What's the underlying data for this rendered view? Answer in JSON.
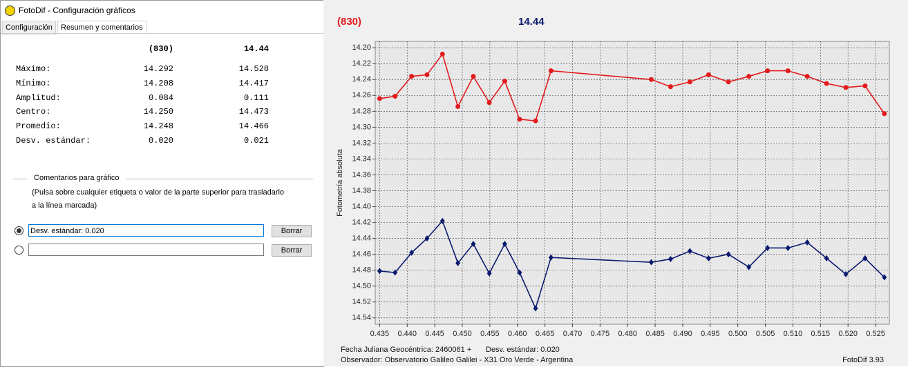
{
  "dialog": {
    "title": "FotoDif - Configuración gráficos",
    "tabs": [
      "Configuración",
      "Resumen y comentarios"
    ],
    "summary": {
      "header": [
        "(830)",
        "14.44"
      ],
      "rows": [
        [
          "Máximo:",
          "14.292",
          "14.528"
        ],
        [
          "Mínimo:",
          "14.208",
          "14.417"
        ],
        [
          "Amplitud:",
          "0.084",
          "0.111"
        ],
        [
          "Centro:",
          "14.250",
          "14.473"
        ],
        [
          "Promedio:",
          "14.248",
          "14.466"
        ],
        [
          "Desv. estándar:",
          "0.020",
          "0.021"
        ]
      ]
    },
    "comments": {
      "legend": "Comentarios para gráfico",
      "hint": [
        "(Pulsa sobre cualquier etiqueta o valor de la parte superior para trasladarlo",
        "a la línea marcada)"
      ],
      "lines": [
        {
          "text": "Desv. estándar: 0.020",
          "button": "Borrar",
          "selected": true
        },
        {
          "button": "Borrar",
          "selected": false
        }
      ]
    }
  },
  "chart_data": {
    "type": "line",
    "ylabel": "Fotometría absoluta",
    "x": [
      0.435,
      0.4378,
      0.4408,
      0.4436,
      0.4464,
      0.4492,
      0.452,
      0.4549,
      0.4577,
      0.4604,
      0.4633,
      0.4661,
      0.4843,
      0.4878,
      0.4913,
      0.4947,
      0.4983,
      0.502,
      0.5054,
      0.5091,
      0.5126,
      0.5161,
      0.5196,
      0.5231,
      0.5266
    ],
    "series": [
      {
        "name": "(830)",
        "color": "#e41a1c",
        "marker": "circle",
        "values": [
          14.264,
          14.261,
          14.236,
          14.234,
          14.208,
          14.274,
          14.236,
          14.269,
          14.242,
          14.29,
          14.292,
          14.229,
          14.24,
          14.249,
          14.243,
          14.234,
          14.243,
          14.236,
          14.229,
          14.229,
          14.236,
          14.245,
          14.25,
          14.248,
          14.283
        ]
      },
      {
        "name": "14.44",
        "color": "#0a1a6e",
        "marker": "diamond",
        "values": [
          14.481,
          14.483,
          14.458,
          14.44,
          14.418,
          14.471,
          14.447,
          14.484,
          14.447,
          14.483,
          14.528,
          14.464,
          14.47,
          14.466,
          14.456,
          14.465,
          14.46,
          14.476,
          14.452,
          14.452,
          14.445,
          14.465,
          14.485,
          14.465,
          14.489
        ]
      }
    ],
    "xlim": [
      0.4342,
      0.5275
    ],
    "ylim": [
      14.192,
      14.548
    ],
    "y_inverted": true,
    "grid": true,
    "xticks": [
      0.435,
      {
        "value": 0.44,
        "label": "0.440"
      },
      0.445,
      {
        "value": 0.45,
        "label": "0.450"
      },
      0.455,
      {
        "value": 0.46,
        "label": "0.460"
      },
      0.465,
      {
        "value": 0.47,
        "label": "0.470"
      },
      0.475,
      {
        "value": 0.48,
        "label": "0.480"
      },
      0.485,
      {
        "value": 0.49,
        "label": "0.490"
      },
      0.495,
      {
        "value": 0.5,
        "label": "0.500"
      },
      0.505,
      {
        "value": 0.51,
        "label": "0.510"
      },
      0.515,
      {
        "value": 0.52,
        "label": "0.520"
      },
      0.525
    ],
    "yticks": [
      {
        "value": 14.2,
        "label": "14.20"
      },
      14.22,
      14.24,
      14.26,
      14.28,
      {
        "value": 14.3,
        "label": "14.30"
      },
      14.32,
      14.34,
      14.36,
      14.38,
      {
        "value": 14.4,
        "label": "14.40"
      },
      14.42,
      14.44,
      14.46,
      14.48,
      {
        "value": 14.5,
        "label": "14.50"
      },
      14.52,
      14.54
    ],
    "notes": [
      "Fecha Juliana Geocéntrica: 2460061 +",
      "Desv. estándar: 0.020",
      "Observador: Observatorio Galileo Galilei - X31 Oro Verde - Argentina",
      "FotoDif 3.93"
    ]
  }
}
